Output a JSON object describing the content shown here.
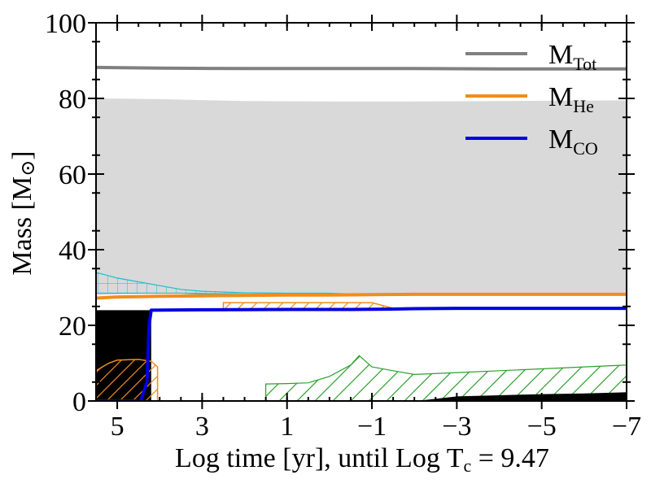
{
  "chart_data": {
    "type": "area",
    "title": "",
    "xlabel": "Log time [yr], until Log T",
    "xlabel_sub": "c",
    "xlabel_tail": " = 9.47",
    "ylabel": "Mass [M",
    "ylabel_sun": "⊙",
    "ylabel_tail": "]",
    "xlim": [
      5.5,
      -7
    ],
    "ylim": [
      0,
      100
    ],
    "x_ticks": [
      5,
      3,
      1,
      -1,
      -3,
      -5,
      -7
    ],
    "x_tick_labels": [
      "5",
      "3",
      "1",
      "−1",
      "−3",
      "−5",
      "−7"
    ],
    "y_ticks": [
      0,
      20,
      40,
      60,
      80,
      100
    ],
    "y_tick_labels": [
      "0",
      "20",
      "40",
      "60",
      "80",
      "100"
    ],
    "grid": false,
    "legend_position": "top-right",
    "series": [
      {
        "name": "M",
        "name_sub": "Tot",
        "color": "#808080",
        "x": [
          5.5,
          4,
          2,
          0,
          -2,
          -4,
          -7
        ],
        "y": [
          88.2,
          88.0,
          87.9,
          87.9,
          87.9,
          87.8,
          87.8
        ]
      },
      {
        "name": "M",
        "name_sub": "He",
        "color": "#f28c1b",
        "x": [
          5.5,
          5.0,
          4.5,
          4.0,
          3.0,
          2.0,
          1.0,
          0.0,
          -1.0,
          -2.0,
          -3.0,
          -5.0,
          -7.0
        ],
        "y": [
          27.2,
          27.5,
          27.6,
          27.7,
          27.8,
          27.9,
          28.0,
          28.0,
          28.1,
          28.2,
          28.2,
          28.2,
          28.2
        ]
      },
      {
        "name": "M",
        "name_sub": "CO",
        "color": "#0000e0",
        "x": [
          5.5,
          4.45,
          4.3,
          4.25,
          4.2,
          3.0,
          1.0,
          -0.5,
          -1.5,
          -2.0,
          -3.0,
          -5.0,
          -7.0
        ],
        "y": [
          0,
          0,
          5,
          20,
          24,
          24.1,
          24.2,
          24.2,
          24.3,
          24.4,
          24.5,
          24.5,
          24.5
        ]
      }
    ],
    "regions": [
      {
        "kind": "convective-envelope",
        "color": "#d9d9d9",
        "x": [
          5.5,
          4.0,
          2.0,
          0.0,
          -2.0,
          -4.0,
          -7.0
        ],
        "top": [
          80,
          79.8,
          79.3,
          79.2,
          79.2,
          79.3,
          79.5
        ],
        "bottom": [
          28,
          28.5,
          28.2,
          28.1,
          28.2,
          28.3,
          28.3
        ]
      },
      {
        "kind": "convective-core",
        "color": "#000000",
        "x": [
          5.5,
          5.0,
          4.5,
          4.2
        ],
        "top": [
          24,
          24,
          24,
          24
        ],
        "bottom": [
          0,
          0,
          0,
          0
        ]
      },
      {
        "kind": "cyan-hatched",
        "color": "#17becf",
        "x": [
          5.5,
          5.0,
          4.5,
          4.0,
          3.5,
          3.0,
          2.0,
          1.0,
          0.0,
          -0.5
        ],
        "top": [
          34,
          32.5,
          31.5,
          30.5,
          29.5,
          29,
          28.6,
          28.5,
          28.5,
          28.3
        ],
        "bottom": [
          28.5,
          28.5,
          28.5,
          28.5,
          28.5,
          28.3,
          28.2,
          28.2,
          28.2,
          28.2
        ]
      },
      {
        "kind": "orange-hatched-core",
        "color": "#f28c1b",
        "x": [
          5.5,
          5.2,
          5.0,
          4.5,
          4.2,
          4.05
        ],
        "top": [
          8,
          10,
          10.8,
          11,
          10.5,
          9
        ],
        "bottom": [
          0,
          0,
          0,
          0,
          0,
          0
        ]
      },
      {
        "kind": "orange-hatched-shell",
        "color": "#f28c1b",
        "x": [
          2.5,
          1.0,
          0.0,
          -0.5,
          -1.0,
          -1.5
        ],
        "top": [
          26,
          26,
          26,
          26,
          26,
          24.5
        ],
        "bottom": [
          24,
          24,
          24,
          24,
          24,
          24
        ]
      },
      {
        "kind": "green-hatched",
        "color": "#2ca02c",
        "x": [
          1.5,
          1.0,
          0.5,
          0.0,
          -0.5,
          -0.7,
          -1.0,
          -1.5,
          -2.0,
          -3.0,
          -4.0,
          -5.0,
          -6.0,
          -7.0
        ],
        "top": [
          4.5,
          4.6,
          4.8,
          6.5,
          9.5,
          12,
          9,
          8,
          7,
          7.5,
          8,
          8.5,
          9,
          9.5
        ],
        "bottom": [
          0,
          0,
          0,
          0,
          0,
          0,
          0,
          0,
          0,
          0,
          0,
          0,
          0,
          0
        ]
      },
      {
        "kind": "shell-core",
        "color": "#000000",
        "x": [
          -2.2,
          -3.0,
          -4.0,
          -5.0,
          -6.0,
          -7.0
        ],
        "top": [
          0.2,
          1.2,
          1.5,
          1.8,
          2.0,
          2.3
        ],
        "bottom": [
          0,
          0,
          0,
          0,
          0,
          0
        ]
      }
    ]
  }
}
